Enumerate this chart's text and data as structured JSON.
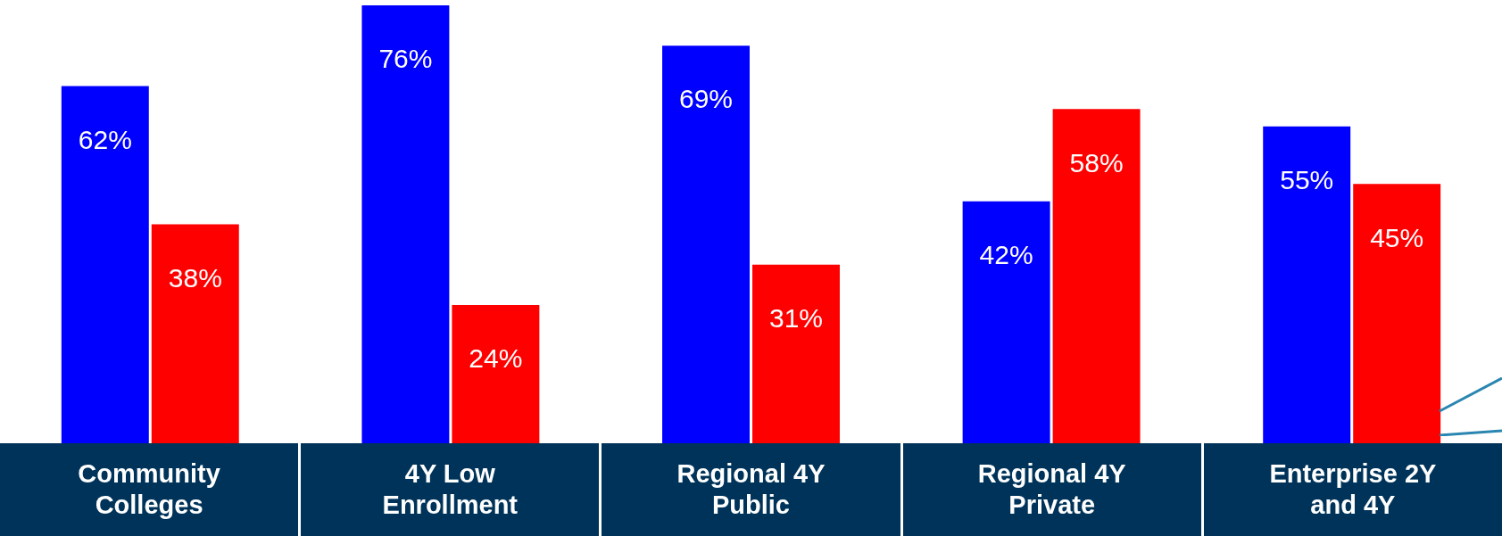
{
  "chart_data": {
    "type": "bar",
    "categories": [
      "Community Colleges",
      "4Y Low Enrollment",
      "Regional 4Y Public",
      "Regional 4Y Private",
      "Enterprise 2Y and 4Y"
    ],
    "series": [
      {
        "color": "#0000ff",
        "values": [
          62,
          76,
          69,
          42,
          55
        ],
        "value_labels": [
          "62%",
          "76%",
          "69%",
          "42%",
          "55%"
        ]
      },
      {
        "color": "#ff0000",
        "values": [
          38,
          24,
          31,
          58,
          45
        ],
        "value_labels": [
          "38%",
          "24%",
          "31%",
          "58%",
          "45%"
        ]
      }
    ]
  }
}
